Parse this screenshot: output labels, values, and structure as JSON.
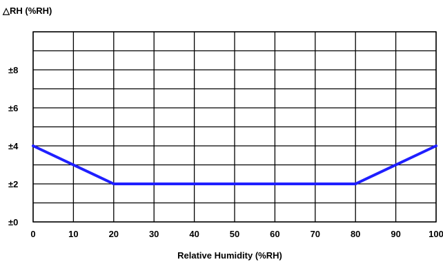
{
  "chart_data": {
    "type": "line",
    "title": "",
    "ylabel": "△RH (%RH)",
    "xlabel": "Relative Humidity (%RH)",
    "xlim": [
      0,
      100
    ],
    "ylim": [
      0,
      10
    ],
    "x_ticks": [
      0,
      10,
      20,
      30,
      40,
      50,
      60,
      70,
      80,
      90,
      100
    ],
    "x_tick_labels": [
      "0",
      "10",
      "20",
      "30",
      "40",
      "50",
      "60",
      "70",
      "80",
      "90",
      "100"
    ],
    "y_ticks": [
      0,
      2,
      4,
      6,
      8
    ],
    "y_tick_labels": [
      "±0",
      "±2",
      "±4",
      "±6",
      "±8"
    ],
    "y_minor_gridlines": [
      1,
      3,
      5,
      7,
      9,
      10
    ],
    "grid": true,
    "legend": "none",
    "series": [
      {
        "x": [
          0,
          20,
          80,
          100
        ],
        "y": [
          4,
          2,
          2,
          4
        ]
      }
    ],
    "colors": {
      "series": "#1f1fff",
      "grid": "#000000"
    }
  }
}
